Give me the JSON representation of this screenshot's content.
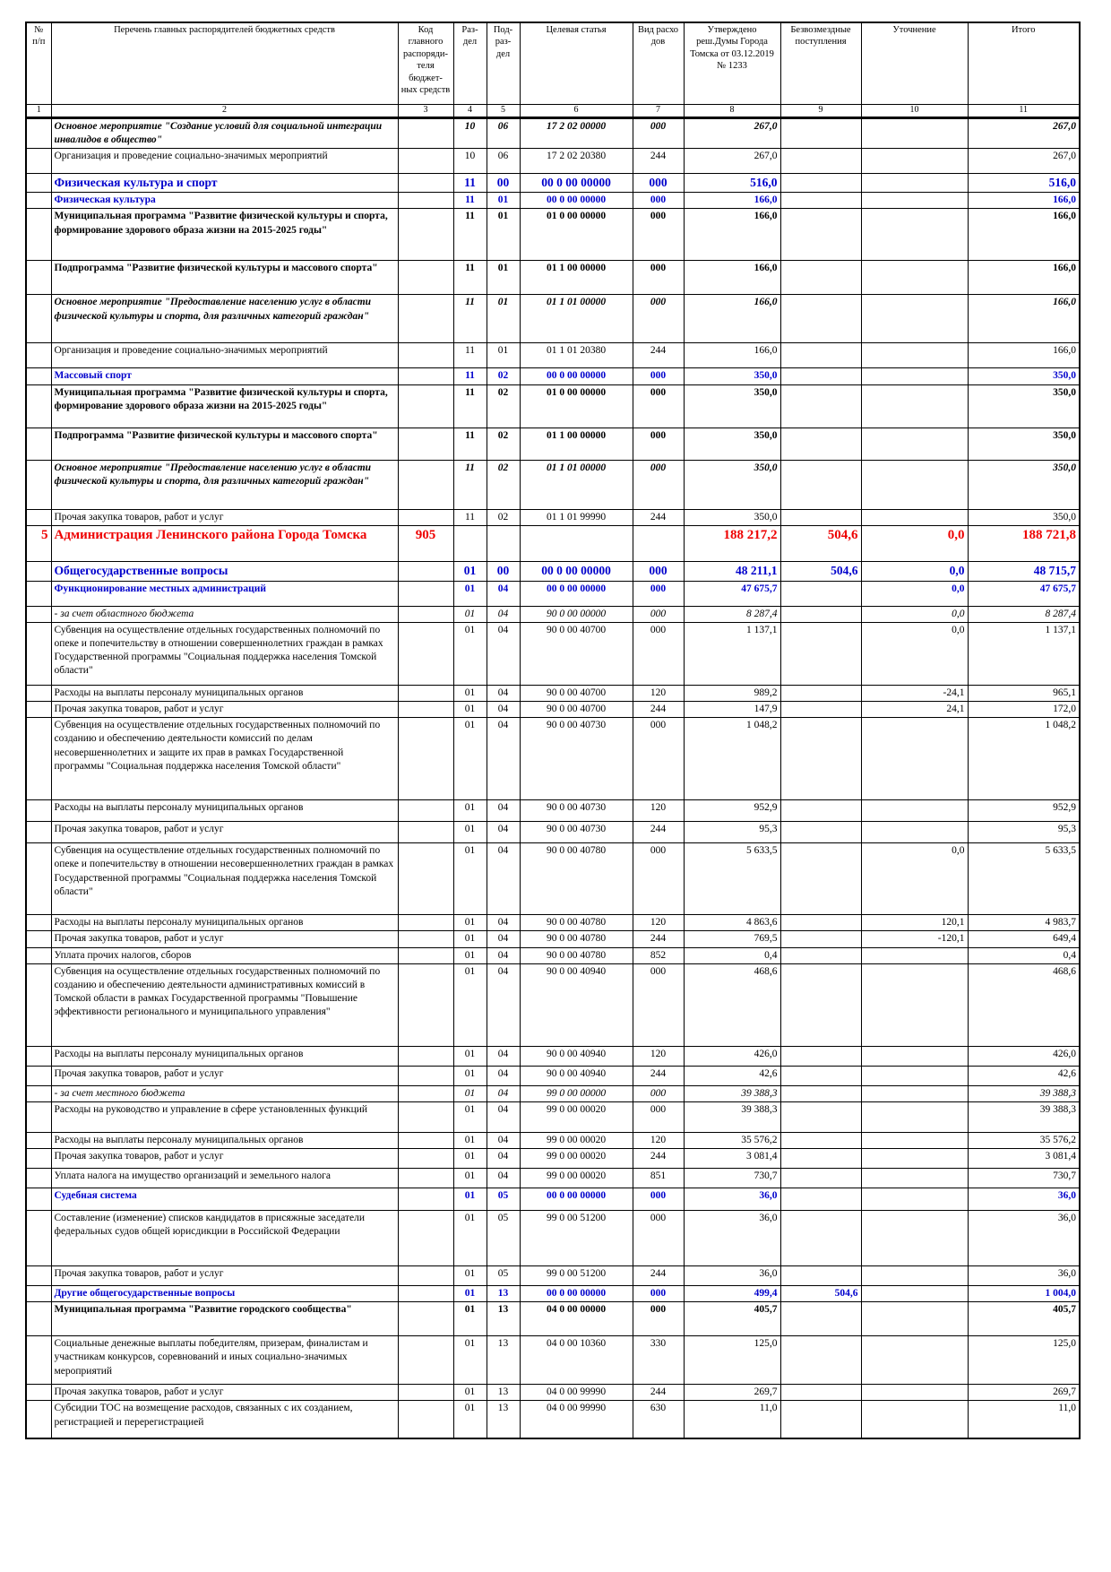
{
  "header": {
    "c1": "№ п/п",
    "c2": "Перечень главных распорядителей бюджетных средств",
    "c3": "Код главного распоряди-теля бюджет-ных средств",
    "c4": "Раз-дел",
    "c5": "Под-раз-дел",
    "c6": "Целевая статья",
    "c7": "Вид расхо дов",
    "c8": "Утверждено реш.Думы Города Томска от 03.12.2019 № 1233",
    "c9": "Безвозмездные поступления",
    "c10": "Уточнение",
    "c11": "Итого"
  },
  "col_numbers": [
    "1",
    "2",
    "3",
    "4",
    "5",
    "6",
    "7",
    "8",
    "9",
    "10",
    "11"
  ],
  "rows": [
    {
      "style": "bolditalic",
      "num": "",
      "name": "Основное мероприятие \"Создание условий для социальной интеграции инвалидов в общество\"",
      "code": "",
      "razdel": "10",
      "podrazdel": "06",
      "article": "17 2 02 00000",
      "vid": "000",
      "approved": "267,0",
      "grants": "",
      "change": "",
      "total": "267,0",
      "h": 34
    },
    {
      "style": "plain indent1",
      "num": "",
      "name": "Организация и проведение социально-значимых мероприятий",
      "code": "",
      "razdel": "10",
      "podrazdel": "06",
      "article": "17 2 02 20380",
      "vid": "244",
      "approved": "267,0",
      "grants": "",
      "change": "",
      "total": "267,0",
      "h": 28
    },
    {
      "style": "section big",
      "num": "",
      "name": "Физическая культура и спорт",
      "code": "",
      "razdel": "11",
      "podrazdel": "00",
      "article": "00 0 00 00000",
      "vid": "000",
      "approved": "516,0",
      "grants": "",
      "change": "",
      "total": "516,0",
      "h": 19
    },
    {
      "style": "section",
      "num": "",
      "name": "Физическая культура",
      "code": "",
      "razdel": "11",
      "podrazdel": "01",
      "article": "00 0 00 00000",
      "vid": "000",
      "approved": "166,0",
      "grants": "",
      "change": "",
      "total": "166,0",
      "h": 15
    },
    {
      "style": "bold",
      "num": "",
      "name": "Муниципальная программа \"Развитие физической культуры и спорта, формирование здорового образа жизни на 2015-2025 годы\"",
      "code": "",
      "razdel": "11",
      "podrazdel": "01",
      "article": "01 0 00 00000",
      "vid": "000",
      "approved": "166,0",
      "grants": "",
      "change": "",
      "total": "166,0",
      "h": 58
    },
    {
      "style": "bold",
      "num": "",
      "name": "Подпрограмма \"Развитие физической культуры и массового спорта\"",
      "code": "",
      "razdel": "11",
      "podrazdel": "01",
      "article": "01 1 00 00000",
      "vid": "000",
      "approved": "166,0",
      "grants": "",
      "change": "",
      "total": "166,0",
      "h": 38
    },
    {
      "style": "bolditalic",
      "num": "",
      "name": "Основное мероприятие \"Предоставление населению услуг в области физической культуры и спорта, для различных категорий граждан\"",
      "code": "",
      "razdel": "11",
      "podrazdel": "01",
      "article": "01 1 01 00000",
      "vid": "000",
      "approved": "166,0",
      "grants": "",
      "change": "",
      "total": "166,0",
      "h": 54
    },
    {
      "style": "plain indent1",
      "num": "",
      "name": "Организация и проведение социально-значимых мероприятий",
      "code": "",
      "razdel": "11",
      "podrazdel": "01",
      "article": "01 1 01 20380",
      "vid": "244",
      "approved": "166,0",
      "grants": "",
      "change": "",
      "total": "166,0",
      "h": 28
    },
    {
      "style": "section",
      "num": "",
      "name": "Массовый спорт",
      "code": "",
      "razdel": "11",
      "podrazdel": "02",
      "article": "00 0 00 00000",
      "vid": "000",
      "approved": "350,0",
      "grants": "",
      "change": "",
      "total": "350,0",
      "h": 15
    },
    {
      "style": "bold",
      "num": "",
      "name": "Муниципальная программа \"Развитие физической культуры и спорта, формирование здорового образа жизни на 2015-2025 годы\"",
      "code": "",
      "razdel": "11",
      "podrazdel": "02",
      "article": "01 0 00 00000",
      "vid": "000",
      "approved": "350,0",
      "grants": "",
      "change": "",
      "total": "350,0",
      "h": 48
    },
    {
      "style": "bold",
      "num": "",
      "name": "Подпрограмма \"Развитие физической культуры и массового спорта\"",
      "code": "",
      "razdel": "11",
      "podrazdel": "02",
      "article": "01 1 00 00000",
      "vid": "000",
      "approved": "350,0",
      "grants": "",
      "change": "",
      "total": "350,0",
      "h": 36
    },
    {
      "style": "bolditalic",
      "num": "",
      "name": "Основное мероприятие \"Предоставление населению услуг в области физической культуры и спорта, для различных категорий граждан\"",
      "code": "",
      "razdel": "11",
      "podrazdel": "02",
      "article": "01 1 01 00000",
      "vid": "000",
      "approved": "350,0",
      "grants": "",
      "change": "",
      "total": "350,0",
      "h": 55
    },
    {
      "style": "plain indent1",
      "num": "",
      "name": "Прочая закупка товаров, работ и услуг",
      "code": "",
      "razdel": "11",
      "podrazdel": "02",
      "article": "01 1 01 99990",
      "vid": "244",
      "approved": "350,0",
      "grants": "",
      "change": "",
      "total": "350,0",
      "h": 15
    },
    {
      "style": "org",
      "num": "5",
      "name": "Администрация Ленинского района Города Томска",
      "code": "905",
      "razdel": "",
      "podrazdel": "",
      "article": "",
      "vid": "",
      "approved": "188 217,2",
      "grants": "504,6",
      "change": "0,0",
      "total": "188 721,8",
      "h": 40
    },
    {
      "style": "section big",
      "num": "",
      "name": "Общегосударственные вопросы",
      "code": "",
      "razdel": "01",
      "podrazdel": "00",
      "article": "00 0 00 00000",
      "vid": "000",
      "approved": "48 211,1",
      "grants": "504,6",
      "change": "0,0",
      "total": "48 715,7",
      "h": 22
    },
    {
      "style": "section",
      "num": "",
      "name": "Функционирование местных администраций",
      "code": "",
      "razdel": "01",
      "podrazdel": "04",
      "article": "00 0 00 00000",
      "vid": "000",
      "approved": "47 675,7",
      "grants": "",
      "change": "0,0",
      "total": "47 675,7",
      "h": 28
    },
    {
      "style": "italic",
      "num": "",
      "name": "- за счет областного бюджета",
      "code": "",
      "razdel": "01",
      "podrazdel": "04",
      "article": "90 0 00 00000",
      "vid": "000",
      "approved": "8 287,4",
      "grants": "",
      "change": "0,0",
      "total": "8 287,4",
      "h": 15
    },
    {
      "style": "plain",
      "num": "",
      "name": "Субвенция на осуществление отдельных государственных полномочий по опеке и попечительству в отношении совершеннолетних граждан в рамках Государственной программы \"Социальная поддержка населения Томской области\"",
      "code": "",
      "razdel": "01",
      "podrazdel": "04",
      "article": "90 0 00 40700",
      "vid": "000",
      "approved": "1 137,1",
      "grants": "",
      "change": "0,0",
      "total": "1 137,1",
      "h": 70
    },
    {
      "style": "plain indent2",
      "num": "",
      "name": "Расходы на выплаты персоналу муниципальных органов",
      "code": "",
      "razdel": "01",
      "podrazdel": "04",
      "article": "90 0 00 40700",
      "vid": "120",
      "approved": "989,2",
      "grants": "",
      "change": "-24,1",
      "total": "965,1",
      "h": 15
    },
    {
      "style": "plain indent2",
      "num": "",
      "name": "Прочая закупка товаров, работ и услуг",
      "code": "",
      "razdel": "01",
      "podrazdel": "04",
      "article": "90 0 00 40700",
      "vid": "244",
      "approved": "147,9",
      "grants": "",
      "change": "24,1",
      "total": "172,0",
      "h": 15
    },
    {
      "style": "plain",
      "num": "",
      "name": "Субвенция на осуществление отдельных государственных полномочий по созданию и обеспечению деятельности комиссий по делам несовершеннолетних и защите их прав в рамках Государственной программы \"Социальная поддержка населения Томской области\"",
      "code": "",
      "razdel": "01",
      "podrazdel": "04",
      "article": "90 0 00 40730",
      "vid": "000",
      "approved": "1 048,2",
      "grants": "",
      "change": "",
      "total": "1 048,2",
      "h": 92
    },
    {
      "style": "plain indent2",
      "num": "",
      "name": "Расходы на выплаты персоналу муниципальных органов",
      "code": "",
      "razdel": "01",
      "podrazdel": "04",
      "article": "90 0 00 40730",
      "vid": "120",
      "approved": "952,9",
      "grants": "",
      "change": "",
      "total": "952,9",
      "h": 24
    },
    {
      "style": "plain indent2",
      "num": "",
      "name": "Прочая закупка товаров, работ и услуг",
      "code": "",
      "razdel": "01",
      "podrazdel": "04",
      "article": "90 0 00 40730",
      "vid": "244",
      "approved": "95,3",
      "grants": "",
      "change": "",
      "total": "95,3",
      "h": 24
    },
    {
      "style": "plain",
      "num": "",
      "name": "Субвенция на осуществление отдельных государственных полномочий по опеке и попечительству в отношении несовершеннолетних граждан в рамках Государственной программы \"Социальная поддержка населения Томской области\"",
      "code": "",
      "razdel": "01",
      "podrazdel": "04",
      "article": "90 0 00 40780",
      "vid": "000",
      "approved": "5 633,5",
      "grants": "",
      "change": "0,0",
      "total": "5 633,5",
      "h": 80
    },
    {
      "style": "plain indent2",
      "num": "",
      "name": "Расходы на выплаты персоналу муниципальных органов",
      "code": "",
      "razdel": "01",
      "podrazdel": "04",
      "article": "90 0 00 40780",
      "vid": "120",
      "approved": "4 863,6",
      "grants": "",
      "change": "120,1",
      "total": "4 983,7",
      "h": 15
    },
    {
      "style": "plain indent2",
      "num": "",
      "name": "Прочая закупка товаров, работ и услуг",
      "code": "",
      "razdel": "01",
      "podrazdel": "04",
      "article": "90 0 00 40780",
      "vid": "244",
      "approved": "769,5",
      "grants": "",
      "change": "-120,1",
      "total": "649,4",
      "h": 15
    },
    {
      "style": "plain indent2",
      "num": "",
      "name": "Уплата прочих налогов, сборов",
      "code": "",
      "razdel": "01",
      "podrazdel": "04",
      "article": "90 0 00 40780",
      "vid": "852",
      "approved": "0,4",
      "grants": "",
      "change": "",
      "total": "0,4",
      "h": 15
    },
    {
      "style": "plain",
      "num": "",
      "name": "Субвенция на осуществление отдельных государственных полномочий по созданию и обеспечению деятельности административных комиссий в Томской области в рамках Государственной программы \"Повышение эффективности регионального и муниципального управления\"",
      "code": "",
      "razdel": "01",
      "podrazdel": "04",
      "article": "90 0 00 40940",
      "vid": "000",
      "approved": "468,6",
      "grants": "",
      "change": "",
      "total": "468,6",
      "h": 92
    },
    {
      "style": "plain indent2",
      "num": "",
      "name": "Расходы на выплаты персоналу муниципальных органов",
      "code": "",
      "razdel": "01",
      "podrazdel": "04",
      "article": "90 0 00 40940",
      "vid": "120",
      "approved": "426,0",
      "grants": "",
      "change": "",
      "total": "426,0",
      "h": 22
    },
    {
      "style": "plain indent2",
      "num": "",
      "name": "Прочая закупка товаров, работ и услуг",
      "code": "",
      "razdel": "01",
      "podrazdel": "04",
      "article": "90 0 00 40940",
      "vid": "244",
      "approved": "42,6",
      "grants": "",
      "change": "",
      "total": "42,6",
      "h": 22
    },
    {
      "style": "italic",
      "num": "",
      "name": "- за счет местного бюджета",
      "code": "",
      "razdel": "01",
      "podrazdel": "04",
      "article": "99 0 00 00000",
      "vid": "000",
      "approved": "39 388,3",
      "grants": "",
      "change": "",
      "total": "39 388,3",
      "h": 15
    },
    {
      "style": "plain",
      "num": "",
      "name": "Расходы на руководство и управление в сфере установленных функций",
      "code": "",
      "razdel": "01",
      "podrazdel": "04",
      "article": "99 0 00 00020",
      "vid": "000",
      "approved": "39 388,3",
      "grants": "",
      "change": "",
      "total": "39 388,3",
      "h": 34
    },
    {
      "style": "plain indent2",
      "num": "",
      "name": "Расходы на выплаты персоналу муниципальных органов",
      "code": "",
      "razdel": "01",
      "podrazdel": "04",
      "article": "99 0 00 00020",
      "vid": "120",
      "approved": "35 576,2",
      "grants": "",
      "change": "",
      "total": "35 576,2",
      "h": 15
    },
    {
      "style": "plain indent2",
      "num": "",
      "name": "Прочая закупка товаров, работ и услуг",
      "code": "",
      "razdel": "01",
      "podrazdel": "04",
      "article": "99 0 00 00020",
      "vid": "244",
      "approved": "3 081,4",
      "grants": "",
      "change": "",
      "total": "3 081,4",
      "h": 22
    },
    {
      "style": "plain indent2",
      "num": "",
      "name": "Уплата налога на имущество организаций и земельного налога",
      "code": "",
      "razdel": "01",
      "podrazdel": "04",
      "article": "99 0 00 00020",
      "vid": "851",
      "approved": "730,7",
      "grants": "",
      "change": "",
      "total": "730,7",
      "h": 22
    },
    {
      "style": "section",
      "num": "",
      "name": "Судебная система",
      "code": "",
      "razdel": "01",
      "podrazdel": "05",
      "article": "00 0 00 00000",
      "vid": "000",
      "approved": "36,0",
      "grants": "",
      "change": "",
      "total": "36,0",
      "h": 25
    },
    {
      "style": "plain",
      "num": "",
      "name": "Составление (изменение) списков кандидатов в присяжные заседатели федеральных судов общей юрисдикции в Российской Федерации",
      "code": "",
      "razdel": "01",
      "podrazdel": "05",
      "article": "99 0 00 51200",
      "vid": "000",
      "approved": "36,0",
      "grants": "",
      "change": "",
      "total": "36,0",
      "h": 62
    },
    {
      "style": "plain indent1",
      "num": "",
      "name": "Прочая закупка товаров, работ и услуг",
      "code": "",
      "razdel": "01",
      "podrazdel": "05",
      "article": "99 0 00 51200",
      "vid": "244",
      "approved": "36,0",
      "grants": "",
      "change": "",
      "total": "36,0",
      "h": 22
    },
    {
      "style": "section",
      "num": "",
      "name": "Другие общегосударственные вопросы",
      "code": "",
      "razdel": "01",
      "podrazdel": "13",
      "article": "00 0 00 00000",
      "vid": "000",
      "approved": "499,4",
      "grants": "504,6",
      "change": "",
      "total": "1 004,0",
      "h": 15
    },
    {
      "style": "bold",
      "num": "",
      "name": "Муниципальная программа \"Развитие городского сообщества\"",
      "code": "",
      "razdel": "01",
      "podrazdel": "13",
      "article": "04 0 00 00000",
      "vid": "000",
      "approved": "405,7",
      "grants": "",
      "change": "",
      "total": "405,7",
      "h": 38
    },
    {
      "style": "plain",
      "num": "",
      "name": "Социальные денежные выплаты победителям, призерам, финалистам и участникам конкурсов, соревнований и иных социально-значимых мероприятий",
      "code": "",
      "razdel": "01",
      "podrazdel": "13",
      "article": "04 0 00 10360",
      "vid": "330",
      "approved": "125,0",
      "grants": "",
      "change": "",
      "total": "125,0",
      "h": 54
    },
    {
      "style": "plain",
      "num": "",
      "name": "Прочая закупка товаров, работ и услуг",
      "code": "",
      "razdel": "01",
      "podrazdel": "13",
      "article": "04 0 00 99990",
      "vid": "244",
      "approved": "269,7",
      "grants": "",
      "change": "",
      "total": "269,7",
      "h": 15
    },
    {
      "style": "plain",
      "num": "",
      "name": "Субсидии ТОС на возмещение расходов, связанных с их созданием, регистрацией и перерегистрацией",
      "code": "",
      "razdel": "01",
      "podrazdel": "13",
      "article": "04 0 00 99990",
      "vid": "630",
      "approved": "11,0",
      "grants": "",
      "change": "",
      "total": "11,0",
      "h": 42
    }
  ]
}
